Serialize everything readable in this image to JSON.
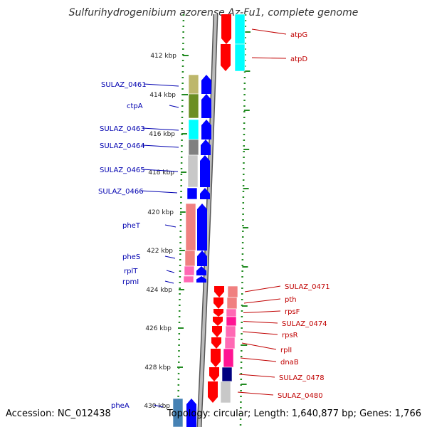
{
  "title": "Sulfurihydrogenibium azorense Az-Fu1, complete genome",
  "accession": "Accession: NC_012438",
  "summary": "Topology: circular; Length: 1,640,877 bp; Genes: 1,766",
  "colors": {
    "forward_label": "#0000b0",
    "reverse_label": "#c00000",
    "backbone": "#808080",
    "tick": "#228b22"
  },
  "ruler": {
    "labels": [
      "412 kbp",
      "414 kbp",
      "416 kbp",
      "418 kbp",
      "420 kbp",
      "422 kbp",
      "424 kbp",
      "426 kbp",
      "428 kbp",
      "430 kbp"
    ]
  },
  "genes": {
    "forward": [
      {
        "label": "SULAZ_0461",
        "feature_color": "#bdb76b"
      },
      {
        "label": "ctpA",
        "feature_color": "#6b8e23"
      },
      {
        "label": "SULAZ_0463",
        "feature_color": "#00ffff"
      },
      {
        "label": "SULAZ_0464",
        "feature_color": "#808080"
      },
      {
        "label": "SULAZ_0465",
        "feature_color": "#c8c8c8"
      },
      {
        "label": "SULAZ_0466",
        "feature_color": "#0000ff"
      },
      {
        "label": "pheT",
        "feature_color": "#f08080"
      },
      {
        "label": "pheS",
        "feature_color": "#f08080"
      },
      {
        "label": "rplT",
        "feature_color": "#ff69b4"
      },
      {
        "label": "rpmI",
        "feature_color": "#ff69b4"
      },
      {
        "label": "pheA",
        "feature_color": "#4682b4"
      }
    ],
    "reverse": [
      {
        "label": "atpG",
        "feature_color": "#00ffff"
      },
      {
        "label": "atpD",
        "feature_color": "#00ffff"
      },
      {
        "label": "SULAZ_0471",
        "feature_color": "#f08080"
      },
      {
        "label": "pth",
        "feature_color": "#f08080"
      },
      {
        "label": "rpsF",
        "feature_color": "#ff69b4"
      },
      {
        "label": "SULAZ_0474",
        "feature_color": "#ff1493"
      },
      {
        "label": "rpsR",
        "feature_color": "#ff69b4"
      },
      {
        "label": "rplI",
        "feature_color": "#ff69b4"
      },
      {
        "label": "dnaB",
        "feature_color": "#ff1493"
      },
      {
        "label": "SULAZ_0478",
        "feature_color": "#000080"
      },
      {
        "label": "SULAZ_0480",
        "feature_color": "#c8c8c8"
      }
    ]
  }
}
